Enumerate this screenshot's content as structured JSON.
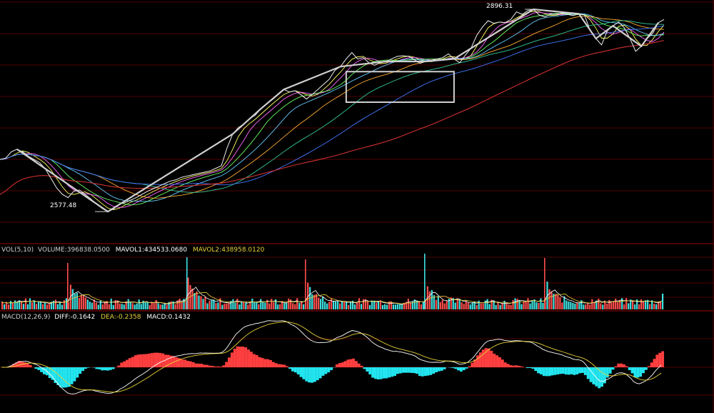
{
  "chart_data": [
    {
      "type": "line",
      "panel": "price",
      "annotations": [
        {
          "label": "2896.31",
          "value": 2896.31,
          "kind": "high"
        },
        {
          "label": "2577.48",
          "value": 2577.48,
          "kind": "low"
        }
      ],
      "series": [
        {
          "key": "price",
          "color": "#e8e8e8",
          "values": [
            2660,
            2662,
            2672,
            2676,
            2672,
            2665,
            2660,
            2655,
            2645,
            2630,
            2615,
            2605,
            2600,
            2610,
            2612,
            2605,
            2598,
            2590,
            2583,
            2578,
            2582,
            2590,
            2592,
            2596,
            2600,
            2605,
            2610,
            2614,
            2618,
            2622,
            2626,
            2628,
            2632,
            2634,
            2636,
            2638,
            2640,
            2642,
            2646,
            2650,
            2678,
            2700,
            2710,
            2716,
            2724,
            2730,
            2740,
            2748,
            2754,
            2762,
            2770,
            2766,
            2768,
            2762,
            2755,
            2762,
            2770,
            2778,
            2786,
            2800,
            2806,
            2818,
            2828,
            2818,
            2820,
            2812,
            2808,
            2812,
            2814,
            2818,
            2822,
            2823,
            2822,
            2817,
            2811,
            2814,
            2816,
            2818,
            2820,
            2826,
            2818,
            2812,
            2824,
            2835,
            2855,
            2868,
            2878,
            2874,
            2876,
            2875,
            2880,
            2892,
            2888,
            2894,
            2896,
            2887,
            2884,
            2888,
            2888,
            2890,
            2888,
            2886,
            2889,
            2887,
            2862,
            2850,
            2840,
            2862,
            2870,
            2876,
            2867,
            2850,
            2830,
            2838,
            2850,
            2858,
            2875,
            2880
          ]
        }
      ]
    },
    {
      "type": "bar",
      "panel": "volume",
      "header": "VOL(5,10)",
      "volume": {
        "label": "VOLUME:",
        "value": "396838.0500"
      },
      "mavol1": {
        "label": "MAVOL1:",
        "value": "434533.0680"
      },
      "mavol2": {
        "label": "MAVOL2:",
        "value": "438958.0120"
      },
      "colors": {
        "up": "#ff4d4d",
        "down": "#3fe0e0",
        "mavol1": "#ffffff",
        "mavol2": "#e8d23a"
      }
    },
    {
      "type": "bar",
      "panel": "macd",
      "header": "MACD(12,26,9)",
      "diff": {
        "label": "DIFF:",
        "value": "-0.1642"
      },
      "dea": {
        "label": "DEA:",
        "value": "-0.2358"
      },
      "macd": {
        "label": "MACD:",
        "value": "0.1432"
      },
      "colors": {
        "positive": "#ff3f3f",
        "negative": "#22e5ef",
        "diff": "#ffffff",
        "dea": "#e8d23a"
      }
    }
  ],
  "colors": {
    "background": "#000000",
    "grid": "#6b0000",
    "header_text": "#d0d0d0"
  }
}
